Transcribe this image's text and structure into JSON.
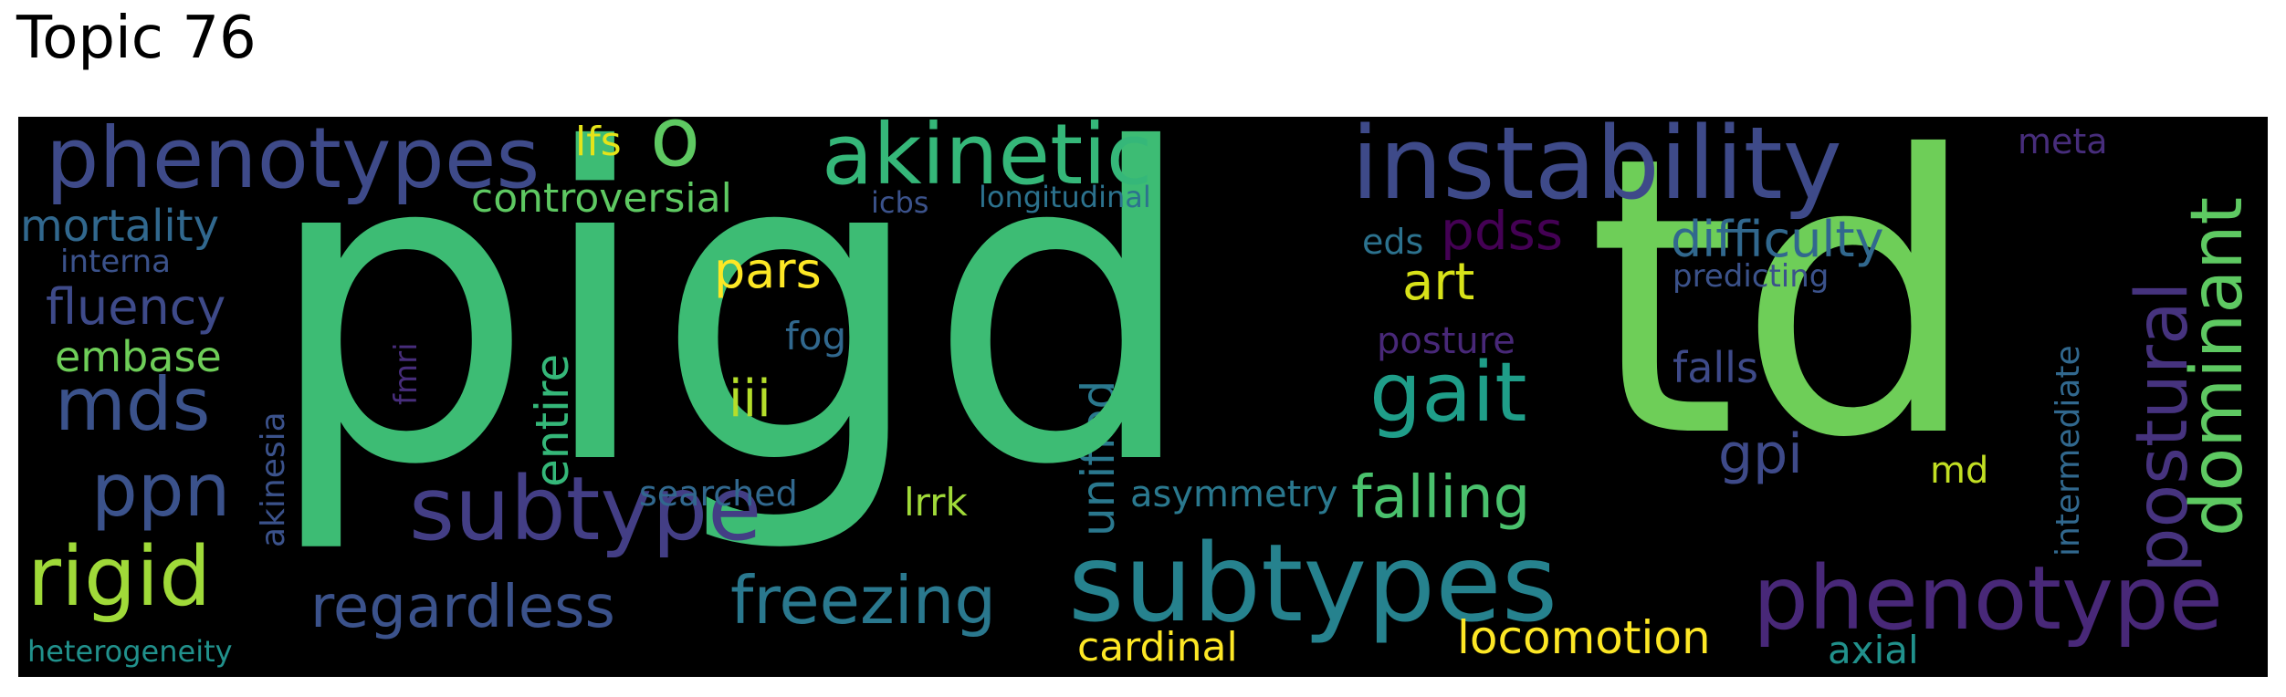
{
  "title": "Topic 76",
  "words": {
    "pigd": "pigd",
    "td": "td",
    "subtypes": "subtypes",
    "instability": "instability",
    "akinetic": "akinetic",
    "phenotypes": "phenotypes",
    "subtype": "subtype",
    "phenotype": "phenotype",
    "gait": "gait",
    "postural": "postural",
    "dominant": "dominant",
    "rigid": "rigid",
    "freezing": "freezing",
    "regardless": "regardless",
    "falling": "falling",
    "ppn": "ppn",
    "mds": "mds",
    "difficulty": "difficulty",
    "locomotion": "locomotion",
    "fluency": "fluency",
    "mortality": "mortality",
    "entire": "entire",
    "unified": "unified",
    "embase": "embase",
    "pars": "pars",
    "controversial": "controversial",
    "art": "art",
    "iii": "iii",
    "gpi": "gpi",
    "cardinal": "cardinal",
    "pdss": "pdss",
    "posture": "posture",
    "intermediate": "intermediate",
    "md": "md",
    "axial": "axial",
    "falls": "falls",
    "lfs": "lfs",
    "o": "o",
    "lrrk": "lrrk",
    "asymmetry": "asymmetry",
    "searched": "searched",
    "fog": "fog",
    "akinesia": "akinesia",
    "eds": "eds",
    "meta": "meta",
    "predicting": "predicting",
    "interna": "interna",
    "longitudinal": "longitudinal",
    "icbs": "icbs",
    "fmri": "fmri",
    "heterogeneity": "heterogeneity"
  }
}
